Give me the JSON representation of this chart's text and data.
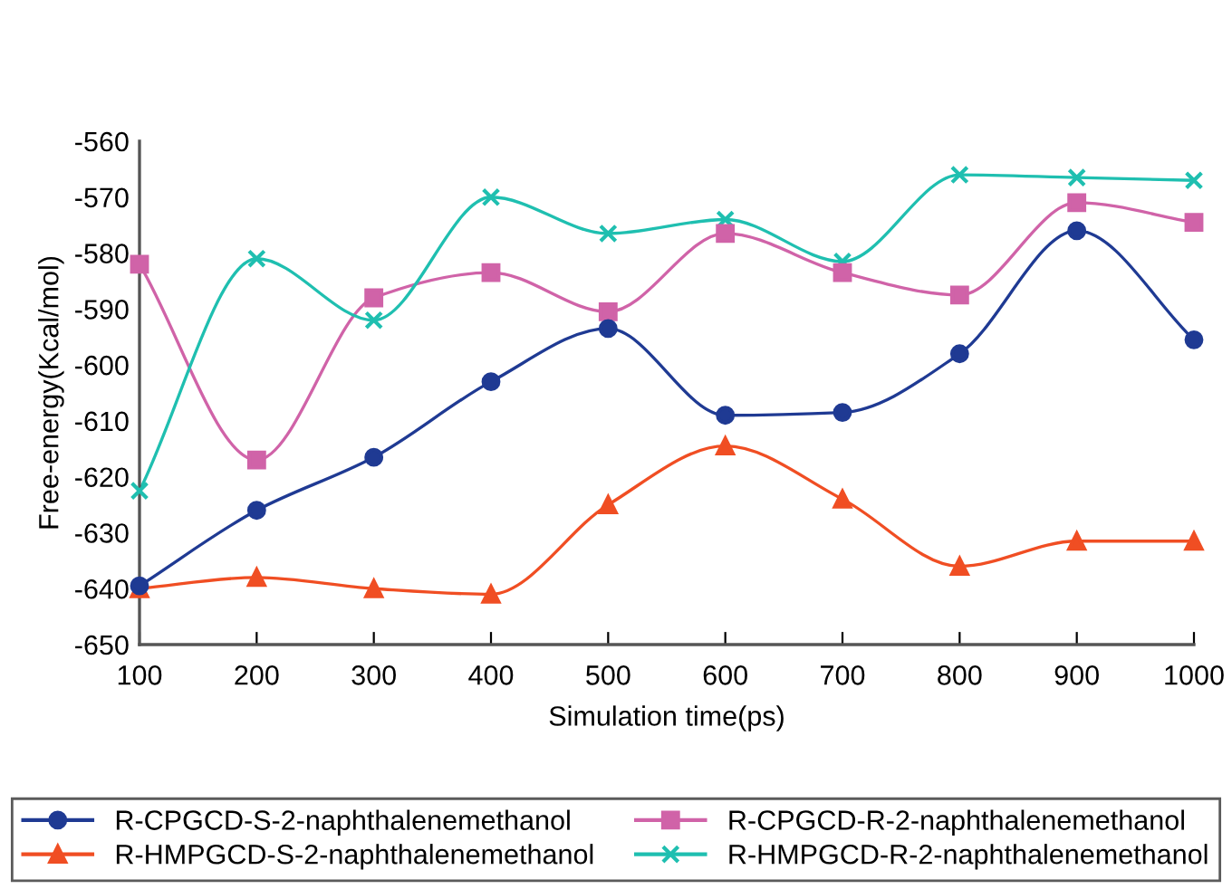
{
  "chart_data": {
    "type": "line",
    "xlabel": "Simulation time(ps)",
    "ylabel": "Free-energy(Kcal/mol)",
    "x": [
      100,
      200,
      300,
      400,
      500,
      600,
      700,
      800,
      900,
      1000
    ],
    "xlim": [
      100,
      1000
    ],
    "xticks": [
      100,
      200,
      300,
      400,
      500,
      600,
      700,
      800,
      900,
      1000
    ],
    "ylim": [
      -650,
      -560
    ],
    "yticks": [
      -650,
      -640,
      -630,
      -620,
      -610,
      -600,
      -590,
      -580,
      -570,
      -560
    ],
    "grid": false,
    "legend": "bottom",
    "series": [
      {
        "name": "R-CPGCD-S-2-naphthalenemethanol",
        "color": "#1f3a93",
        "marker": "circle",
        "values": [
          -639.5,
          -626,
          -616.5,
          -603,
          -593.5,
          -609,
          -608.5,
          -598,
          -576,
          -595.5
        ]
      },
      {
        "name": "R-CPGCD-R-2-naphthalenemethanol",
        "color": "#d063a8",
        "marker": "square",
        "values": [
          -582,
          -617,
          -588,
          -583.5,
          -590.5,
          -576.5,
          -583.5,
          -587.5,
          -571,
          -574.5
        ]
      },
      {
        "name": "R-HMPGCD-S-2-naphthalenemethanol",
        "color": "#f04e23",
        "marker": "triangle",
        "values": [
          -640,
          -638,
          -640,
          -641,
          -625,
          -614.5,
          -624,
          -636,
          -631.5,
          -631.5
        ]
      },
      {
        "name": "R-HMPGCD-R-2-naphthalenemethanol",
        "color": "#1fbfb0",
        "marker": "cross",
        "values": [
          -622.5,
          -581,
          -592,
          -570,
          -576.5,
          -574,
          -581.5,
          -566,
          -566.5,
          -567
        ]
      }
    ]
  }
}
